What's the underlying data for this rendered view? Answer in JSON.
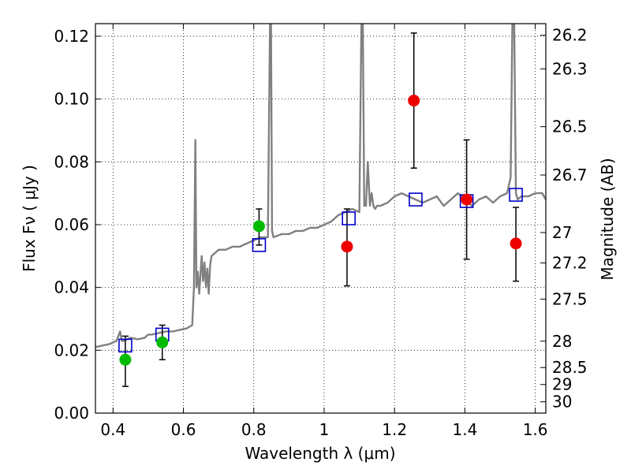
{
  "chart_data": {
    "type": "scatter",
    "xlabel": "Wavelength  λ (μm)",
    "ylabel": "Flux  Fν  ( μJy )",
    "ylabel_right": "Magnitude (AB)",
    "xlim": [
      0.35,
      1.63
    ],
    "ylim": [
      0.0,
      0.124
    ],
    "grid": true,
    "x_ticks": [
      0.4,
      0.6,
      0.8,
      1.0,
      1.2,
      1.4,
      1.6
    ],
    "x_tick_labels": [
      "0.4",
      "0.6",
      "0.8",
      "1",
      "1.2",
      "1.4",
      "1.6"
    ],
    "y_ticks": [
      0.0,
      0.02,
      0.04,
      0.06,
      0.08,
      0.1,
      0.12
    ],
    "y_tick_labels": [
      "0.00",
      "0.02",
      "0.04",
      "0.06",
      "0.08",
      "0.10",
      "0.12"
    ],
    "right_ticks": [
      {
        "label": "26.2",
        "flux": 0.1203
      },
      {
        "label": "26.3",
        "flux": 0.1096
      },
      {
        "label": "26.5",
        "flux": 0.0912
      },
      {
        "label": "26.7",
        "flux": 0.0758
      },
      {
        "label": "27",
        "flux": 0.0575
      },
      {
        "label": "27.2",
        "flux": 0.0478
      },
      {
        "label": "27.5",
        "flux": 0.0363
      },
      {
        "label": "28",
        "flux": 0.0229
      },
      {
        "label": "28.5",
        "flux": 0.0145
      },
      {
        "label": "29",
        "flux": 0.0091
      },
      {
        "label": "30",
        "flux": 0.0036
      }
    ],
    "series": [
      {
        "kind": "line",
        "color": "#808080",
        "x": [
          0.35,
          0.37,
          0.39,
          0.41,
          0.42,
          0.425,
          0.43,
          0.45,
          0.47,
          0.49,
          0.5,
          0.51,
          0.53,
          0.55,
          0.57,
          0.59,
          0.61,
          0.625,
          0.63,
          0.634,
          0.637,
          0.641,
          0.645,
          0.652,
          0.656,
          0.66,
          0.664,
          0.668,
          0.672,
          0.676,
          0.68,
          0.69,
          0.7,
          0.72,
          0.74,
          0.76,
          0.78,
          0.8,
          0.82,
          0.84,
          0.846,
          0.849,
          0.852,
          0.856,
          0.88,
          0.9,
          0.92,
          0.94,
          0.96,
          0.98,
          1.0,
          1.02,
          1.04,
          1.06,
          1.08,
          1.1,
          1.106,
          1.11,
          1.114,
          1.119,
          1.124,
          1.13,
          1.135,
          1.14,
          1.145,
          1.15,
          1.16,
          1.18,
          1.2,
          1.22,
          1.24,
          1.26,
          1.28,
          1.3,
          1.32,
          1.34,
          1.36,
          1.38,
          1.4,
          1.42,
          1.44,
          1.46,
          1.48,
          1.5,
          1.52,
          1.53,
          1.535,
          1.54,
          1.545,
          1.55,
          1.56,
          1.58,
          1.6,
          1.62,
          1.63
        ],
        "y": [
          0.021,
          0.0215,
          0.022,
          0.023,
          0.026,
          0.023,
          0.023,
          0.024,
          0.0235,
          0.024,
          0.025,
          0.025,
          0.0255,
          0.026,
          0.026,
          0.0265,
          0.027,
          0.028,
          0.04,
          0.087,
          0.04,
          0.045,
          0.038,
          0.05,
          0.042,
          0.048,
          0.04,
          0.046,
          0.038,
          0.047,
          0.05,
          0.051,
          0.052,
          0.052,
          0.053,
          0.053,
          0.054,
          0.055,
          0.056,
          0.056,
          0.124,
          0.124,
          0.058,
          0.056,
          0.057,
          0.057,
          0.058,
          0.058,
          0.059,
          0.059,
          0.06,
          0.061,
          0.063,
          0.064,
          0.065,
          0.064,
          0.124,
          0.124,
          0.066,
          0.066,
          0.08,
          0.066,
          0.07,
          0.066,
          0.065,
          0.066,
          0.066,
          0.067,
          0.069,
          0.07,
          0.069,
          0.068,
          0.067,
          0.068,
          0.069,
          0.066,
          0.068,
          0.07,
          0.068,
          0.066,
          0.068,
          0.069,
          0.067,
          0.069,
          0.07,
          0.075,
          0.124,
          0.124,
          0.07,
          0.068,
          0.069,
          0.069,
          0.07,
          0.07,
          0.068
        ]
      },
      {
        "kind": "open-squares",
        "color": "#0000cc",
        "x": [
          0.435,
          0.54,
          0.815,
          1.07,
          1.26,
          1.405,
          1.545
        ],
        "y": [
          0.0215,
          0.025,
          0.0535,
          0.062,
          0.068,
          0.0675,
          0.0695
        ]
      },
      {
        "kind": "filled-circles",
        "color": "#00bb00",
        "x": [
          0.435,
          0.54,
          0.815
        ],
        "y": [
          0.017,
          0.0225,
          0.0595
        ],
        "err_low": [
          0.0085,
          0.017,
          0.0535
        ],
        "err_high": [
          0.0245,
          0.028,
          0.065
        ]
      },
      {
        "kind": "filled-circles",
        "color": "#ee0000",
        "x": [
          1.065,
          1.255,
          1.405,
          1.545
        ],
        "y": [
          0.053,
          0.0995,
          0.068,
          0.054
        ],
        "err_low": [
          0.0405,
          0.078,
          0.049,
          0.042
        ],
        "err_high": [
          0.065,
          0.121,
          0.087,
          0.0655
        ]
      }
    ]
  }
}
